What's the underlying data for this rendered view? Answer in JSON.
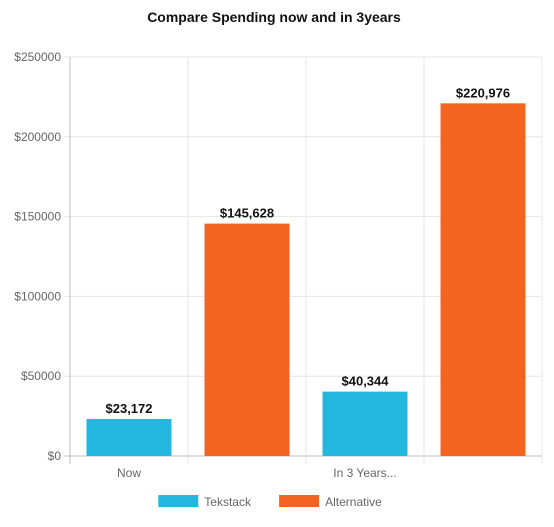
{
  "chart_data": {
    "type": "bar",
    "title": "Compare Spending now and in 3years",
    "xlabel": "",
    "ylabel": "",
    "ylim": [
      0,
      250000
    ],
    "y_ticks": [
      0,
      50000,
      100000,
      150000,
      200000,
      250000
    ],
    "y_tick_labels": [
      "$0",
      "$50000",
      "$100000",
      "$150000",
      "$200000",
      "$250000"
    ],
    "x_tick_labels": [
      "Now",
      "",
      "In 3 Years...",
      ""
    ],
    "grid": true,
    "legend_position": "bottom",
    "bars": [
      {
        "series": "Tekstack",
        "value": 23172,
        "label": "$23,172"
      },
      {
        "series": "Alternative",
        "value": 145628,
        "label": "$145,628"
      },
      {
        "series": "Tekstack",
        "value": 40344,
        "label": "$40,344"
      },
      {
        "series": "Alternative",
        "value": 220976,
        "label": "$220,976"
      }
    ],
    "series": [
      {
        "name": "Tekstack",
        "color": "#23b7df"
      },
      {
        "name": "Alternative",
        "color": "#f36421"
      }
    ]
  }
}
